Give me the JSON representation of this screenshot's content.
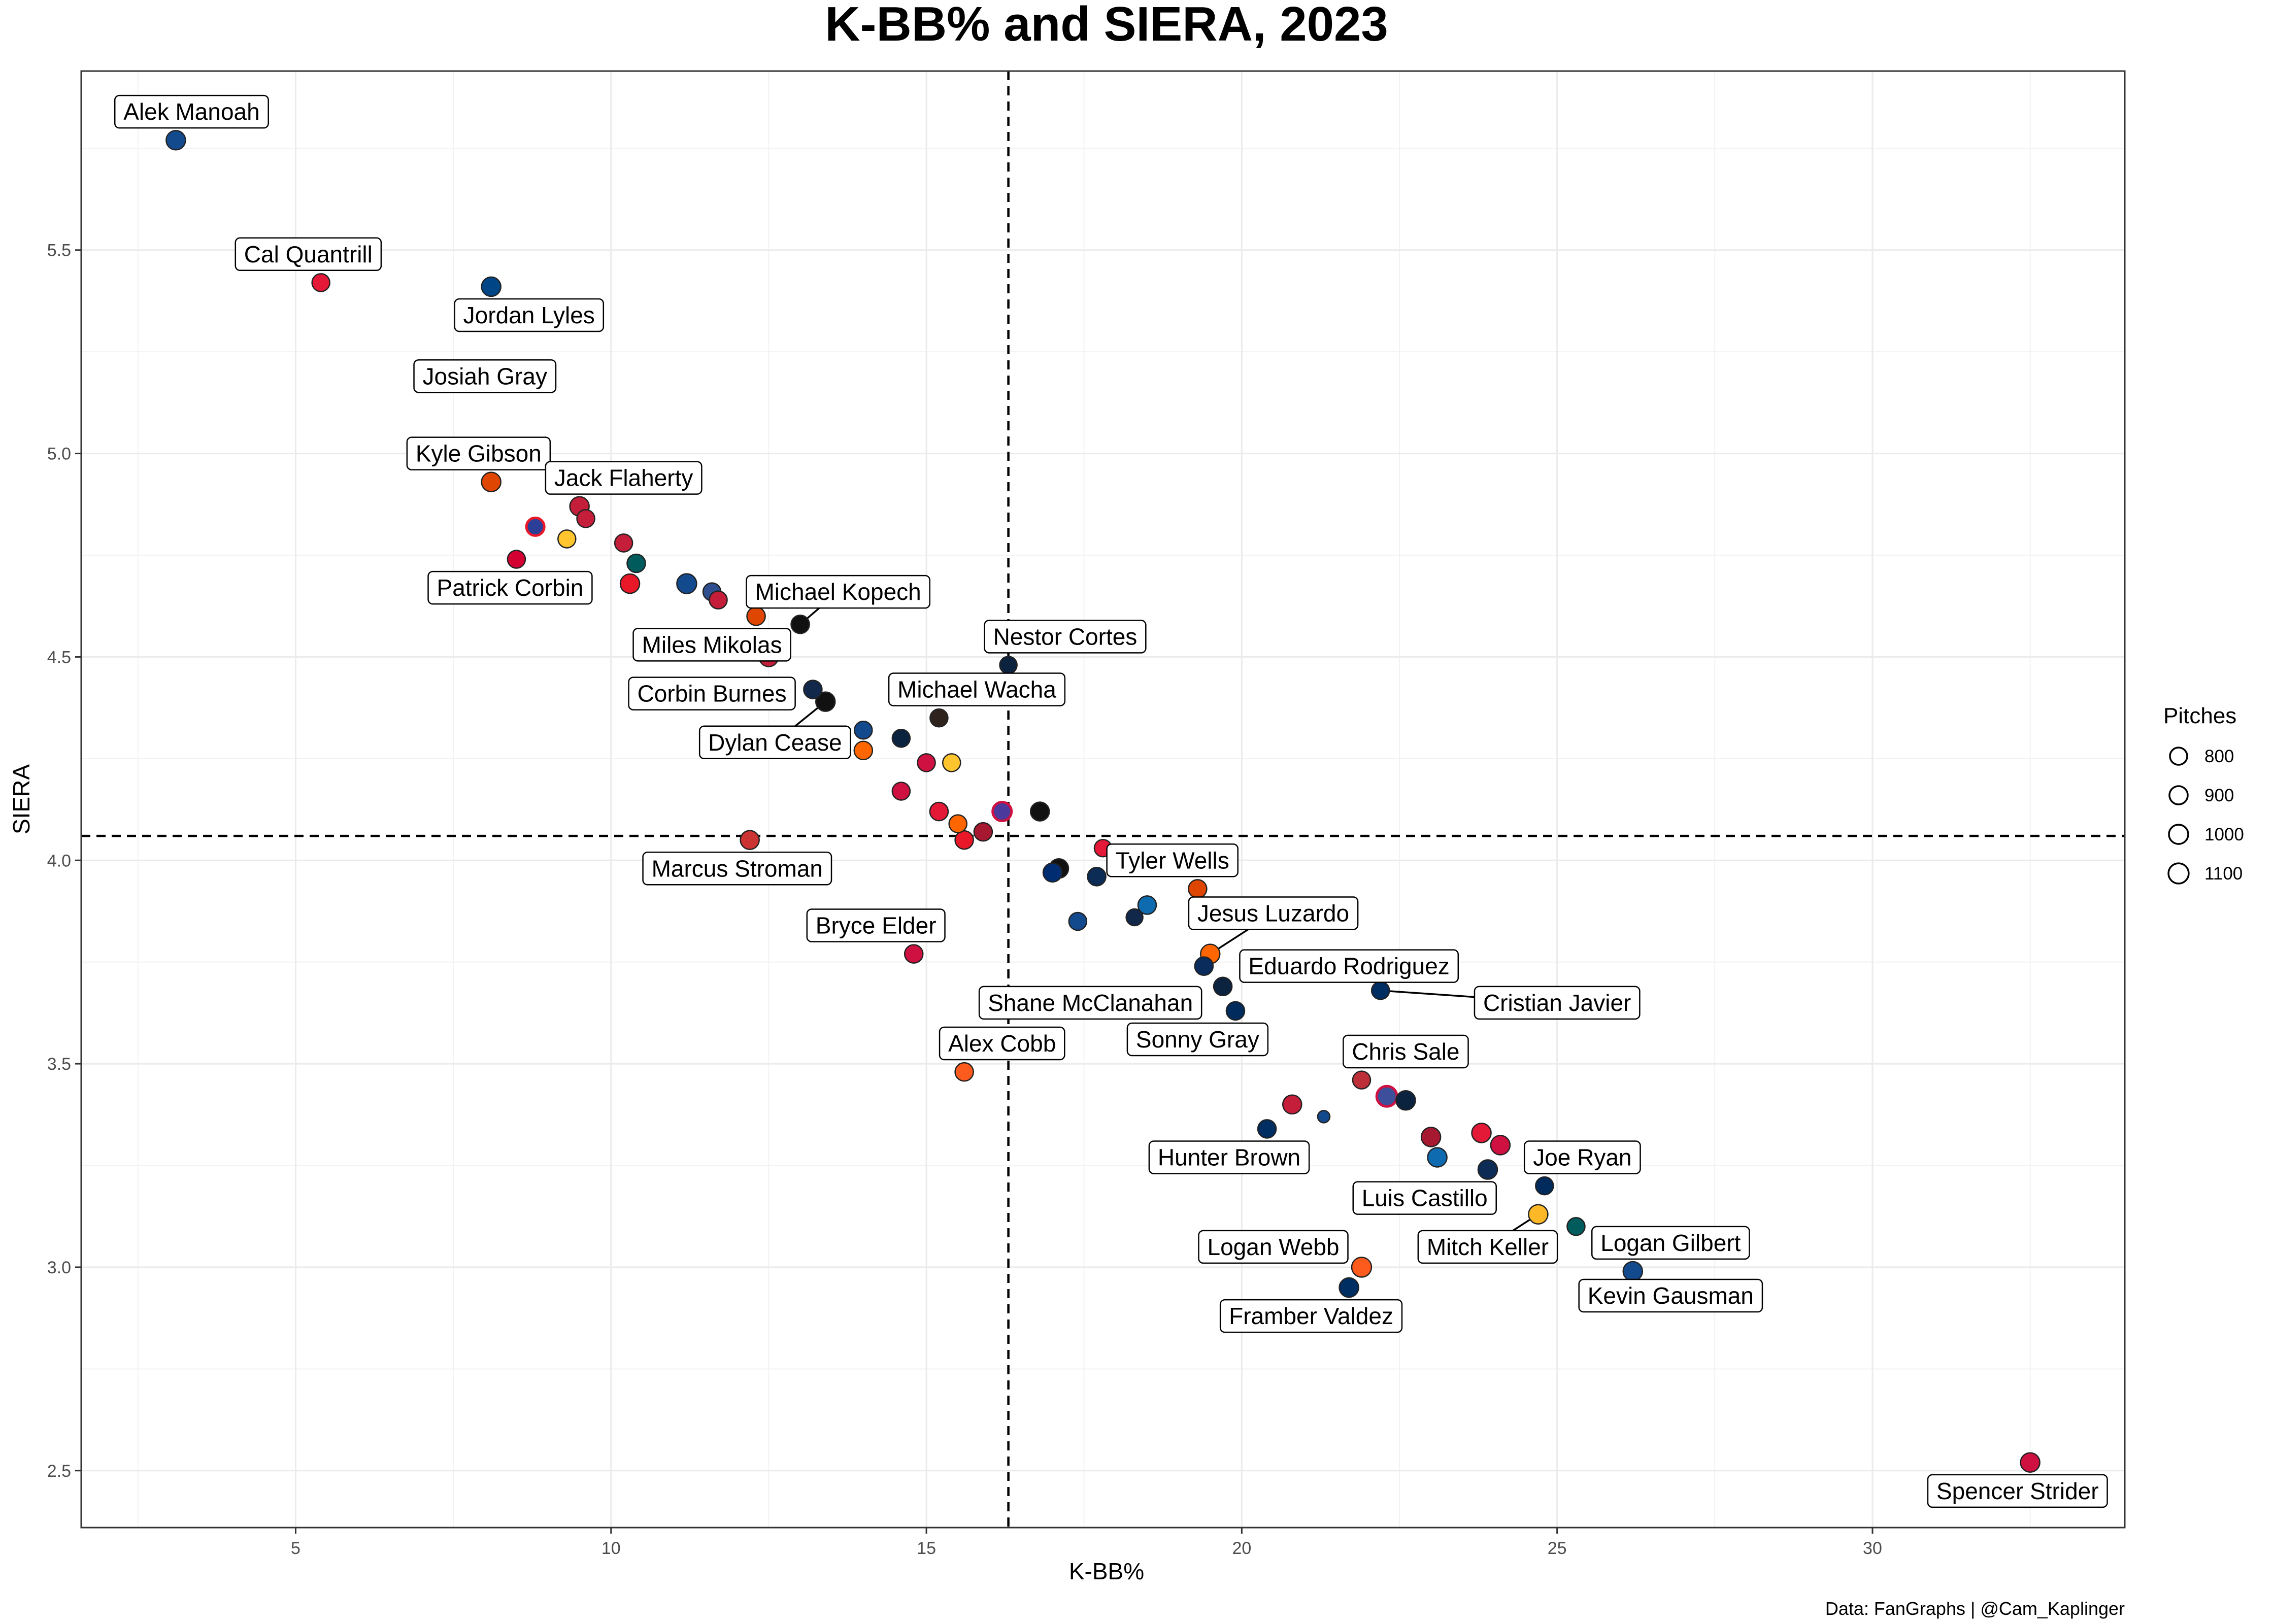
{
  "chart_data": {
    "type": "scatter",
    "title": "K-BB% and SIERA, 2023",
    "xlabel": "K-BB%",
    "ylabel": "SIERA",
    "caption": "Data: FanGraphs | @Cam_Kaplinger",
    "xlim": [
      1.6,
      34.0
    ],
    "ylim": [
      2.36,
      5.94
    ],
    "x_ticks": [
      5,
      10,
      15,
      20,
      25,
      30
    ],
    "x_tick_labels": [
      "5",
      "10",
      "15",
      "20",
      "25",
      "30"
    ],
    "y_ticks": [
      2.5,
      3.0,
      3.5,
      4.0,
      4.5,
      5.0,
      5.5
    ],
    "y_tick_labels": [
      "2.5",
      "3.0",
      "3.5",
      "4.0",
      "4.5",
      "5.0",
      "5.5"
    ],
    "grid": true,
    "reference_lines": {
      "vertical_x": 16.3,
      "horizontal_y": 4.06,
      "style": "dashed"
    },
    "legend": {
      "title": "Pitches",
      "position": "right",
      "entries": [
        {
          "label": "800",
          "size": 800
        },
        {
          "label": "900",
          "size": 900
        },
        {
          "label": "1000",
          "size": 1000
        },
        {
          "label": "1100",
          "size": 1100
        }
      ]
    },
    "points": [
      {
        "name": "Alek Manoah",
        "x": 3.1,
        "y": 5.77,
        "size": 1000,
        "color": "#134A8E"
      },
      {
        "name": "Cal Quantrill",
        "x": 5.4,
        "y": 5.42,
        "size": 850,
        "color": "#E31937"
      },
      {
        "name": "Jordan Lyles",
        "x": 8.1,
        "y": 5.41,
        "size": 1000,
        "color": "#004687"
      },
      {
        "name": "Josiah Gray",
        "x": null,
        "y": null,
        "size": 0,
        "color": "#AB0003"
      },
      {
        "name": "Kyle Gibson",
        "x": 8.1,
        "y": 4.93,
        "size": 1000,
        "color": "#DF4601"
      },
      {
        "name": "Jack Flaherty",
        "x": 9.5,
        "y": 4.87,
        "size": 1000,
        "color": "#C41E3A"
      },
      {
        "name": "Patrick Corbin",
        "x": 8.5,
        "y": 4.74,
        "size": 850,
        "color": "#D50032"
      },
      {
        "name": "Michael Kopech",
        "x": 13.0,
        "y": 4.58,
        "size": 900,
        "color": "#111111"
      },
      {
        "name": "Miles Mikolas",
        "x": 12.5,
        "y": 4.5,
        "size": 1000,
        "color": "#C41E3A"
      },
      {
        "name": "Nestor Cortes",
        "x": 16.3,
        "y": 4.48,
        "size": 800,
        "color": "#0C2340"
      },
      {
        "name": "Corbin Burnes",
        "x": 13.2,
        "y": 4.42,
        "size": 900,
        "color": "#12284B"
      },
      {
        "name": "Michael Wacha",
        "x": 15.2,
        "y": 4.35,
        "size": 850,
        "color": "#2F241D"
      },
      {
        "name": "Dylan Cease",
        "x": 13.4,
        "y": 4.39,
        "size": 1000,
        "color": "#111111"
      },
      {
        "name": "Marcus Stroman",
        "x": 12.2,
        "y": 4.05,
        "size": 950,
        "color": "#CC3433"
      },
      {
        "name": "Tyler Wells",
        "x": 19.3,
        "y": 3.93,
        "size": 900,
        "color": "#DF4601"
      },
      {
        "name": "Bryce Elder",
        "x": 14.8,
        "y": 3.77,
        "size": 900,
        "color": "#CE1141"
      },
      {
        "name": "Jesus Luzardo",
        "x": 19.5,
        "y": 3.77,
        "size": 1000,
        "color": "#FF6600"
      },
      {
        "name": "Shane McClanahan",
        "x": 19.4,
        "y": 3.74,
        "size": 900,
        "color": "#092C5C"
      },
      {
        "name": "Eduardo Rodriguez",
        "x": 19.7,
        "y": 3.69,
        "size": 900,
        "color": "#0C2340"
      },
      {
        "name": "Cristian Javier",
        "x": 22.2,
        "y": 3.68,
        "size": 850,
        "color": "#002D62"
      },
      {
        "name": "Sonny Gray",
        "x": 19.9,
        "y": 3.63,
        "size": 900,
        "color": "#002B5C"
      },
      {
        "name": "Alex Cobb",
        "x": 15.6,
        "y": 3.48,
        "size": 900,
        "color": "#FD5A1E"
      },
      {
        "name": "Chris Sale",
        "x": 21.9,
        "y": 3.46,
        "size": 850,
        "color": "#BD3039"
      },
      {
        "name": "Hunter Brown",
        "x": 20.4,
        "y": 3.34,
        "size": 900,
        "color": "#002D62"
      },
      {
        "name": "Joe Ryan",
        "x": 24.8,
        "y": 3.2,
        "size": 850,
        "color": "#002B5C"
      },
      {
        "name": "Luis Castillo",
        "x": 23.9,
        "y": 3.24,
        "size": 1000,
        "color": "#0C2C56"
      },
      {
        "name": "Mitch Keller",
        "x": 24.7,
        "y": 3.13,
        "size": 1000,
        "color": "#FDB827"
      },
      {
        "name": "Logan Gilbert",
        "x": 25.3,
        "y": 3.1,
        "size": 850,
        "color": "#005C5C"
      },
      {
        "name": "Logan Webb",
        "x": 21.9,
        "y": 3.0,
        "size": 1050,
        "color": "#FD5A1E"
      },
      {
        "name": "Framber Valdez",
        "x": 21.7,
        "y": 2.95,
        "size": 1000,
        "color": "#002D62"
      },
      {
        "name": "Kevin Gausman",
        "x": 26.2,
        "y": 2.99,
        "size": 1000,
        "color": "#134A8E"
      },
      {
        "name": "Spencer Strider",
        "x": 32.5,
        "y": 2.52,
        "size": 1000,
        "color": "#CE1141"
      },
      {
        "name": "",
        "x": 8.8,
        "y": 4.82,
        "size": 850,
        "color": "#2C3F98",
        "stroke": "#E81828"
      },
      {
        "name": "",
        "x": 9.3,
        "y": 4.79,
        "size": 850,
        "color": "#FFC52F"
      },
      {
        "name": "",
        "x": 9.6,
        "y": 4.84,
        "size": 850,
        "color": "#C41E3A"
      },
      {
        "name": "",
        "x": 10.2,
        "y": 4.78,
        "size": 850,
        "color": "#C41E3A"
      },
      {
        "name": "",
        "x": 10.4,
        "y": 4.73,
        "size": 900,
        "color": "#005C5C"
      },
      {
        "name": "",
        "x": 10.3,
        "y": 4.68,
        "size": 1000,
        "color": "#E81828"
      },
      {
        "name": "",
        "x": 11.2,
        "y": 4.68,
        "size": 1050,
        "color": "#134A8E"
      },
      {
        "name": "",
        "x": 11.6,
        "y": 4.66,
        "size": 850,
        "color": "#2F4F8F"
      },
      {
        "name": "",
        "x": 11.7,
        "y": 4.64,
        "size": 850,
        "color": "#C41E3A"
      },
      {
        "name": "",
        "x": 12.3,
        "y": 4.6,
        "size": 900,
        "color": "#DF4601"
      },
      {
        "name": "",
        "x": 14.0,
        "y": 4.32,
        "size": 850,
        "color": "#134A8E"
      },
      {
        "name": "",
        "x": 14.6,
        "y": 4.3,
        "size": 850,
        "color": "#0C2340"
      },
      {
        "name": "",
        "x": 14.0,
        "y": 4.27,
        "size": 900,
        "color": "#FF6600"
      },
      {
        "name": "",
        "x": 15.4,
        "y": 4.24,
        "size": 850,
        "color": "#FFC52F"
      },
      {
        "name": "",
        "x": 15.0,
        "y": 4.24,
        "size": 850,
        "color": "#CE1141"
      },
      {
        "name": "",
        "x": 14.6,
        "y": 4.17,
        "size": 850,
        "color": "#CE1141"
      },
      {
        "name": "",
        "x": 15.2,
        "y": 4.12,
        "size": 900,
        "color": "#E31937"
      },
      {
        "name": "",
        "x": 15.5,
        "y": 4.09,
        "size": 850,
        "color": "#FF6600"
      },
      {
        "name": "",
        "x": 15.6,
        "y": 4.05,
        "size": 900,
        "color": "#E81828"
      },
      {
        "name": "",
        "x": 15.9,
        "y": 4.07,
        "size": 900,
        "color": "#A71930"
      },
      {
        "name": "",
        "x": 16.2,
        "y": 4.12,
        "size": 950,
        "color": "#4B3A9C",
        "stroke": "#CE1141"
      },
      {
        "name": "",
        "x": 16.8,
        "y": 4.12,
        "size": 950,
        "color": "#111111"
      },
      {
        "name": "",
        "x": 17.8,
        "y": 4.03,
        "size": 800,
        "color": "#E31937"
      },
      {
        "name": "",
        "x": 17.0,
        "y": 3.97,
        "size": 950,
        "color": "#002D72"
      },
      {
        "name": "",
        "x": 17.1,
        "y": 3.98,
        "size": 1000,
        "color": "#111111"
      },
      {
        "name": "",
        "x": 17.7,
        "y": 3.96,
        "size": 900,
        "color": "#0C2C56"
      },
      {
        "name": "",
        "x": 18.5,
        "y": 3.89,
        "size": 900,
        "color": "#0E6BB0"
      },
      {
        "name": "",
        "x": 18.3,
        "y": 3.86,
        "size": 750,
        "color": "#12284B"
      },
      {
        "name": "",
        "x": 17.4,
        "y": 3.85,
        "size": 850,
        "color": "#134A8E"
      },
      {
        "name": "",
        "x": 21.3,
        "y": 3.37,
        "size": 400,
        "color": "#134A8E"
      },
      {
        "name": "",
        "x": 20.8,
        "y": 3.4,
        "size": 950,
        "color": "#C41E3A"
      },
      {
        "name": "",
        "x": 22.3,
        "y": 3.42,
        "size": 1100,
        "color": "#3D4F9A",
        "stroke": "#CE1141"
      },
      {
        "name": "",
        "x": 22.6,
        "y": 3.41,
        "size": 1000,
        "color": "#0C2340"
      },
      {
        "name": "",
        "x": 23.0,
        "y": 3.32,
        "size": 1000,
        "color": "#A71930"
      },
      {
        "name": "",
        "x": 23.8,
        "y": 3.33,
        "size": 1000,
        "color": "#E31937"
      },
      {
        "name": "",
        "x": 24.1,
        "y": 3.3,
        "size": 1000,
        "color": "#CE1141"
      },
      {
        "name": "",
        "x": 23.1,
        "y": 3.27,
        "size": 1000,
        "color": "#0E6BB0"
      }
    ],
    "labels": [
      {
        "text": "Alek Manoah",
        "lx": 3.35,
        "ly": 5.84
      },
      {
        "text": "Cal Quantrill",
        "lx": 5.2,
        "ly": 5.49
      },
      {
        "text": "Jordan Lyles",
        "lx": 8.7,
        "ly": 5.34
      },
      {
        "text": "Josiah Gray",
        "lx": 8.0,
        "ly": 5.19
      },
      {
        "text": "Kyle Gibson",
        "lx": 7.9,
        "ly": 5.0
      },
      {
        "text": "Jack Flaherty",
        "lx": 10.2,
        "ly": 4.94
      },
      {
        "text": "Patrick Corbin",
        "lx": 8.4,
        "ly": 4.67
      },
      {
        "text": "Michael Kopech",
        "lx": 13.6,
        "ly": 4.66,
        "tx": 13.0,
        "ty": 4.58
      },
      {
        "text": "Miles Mikolas",
        "lx": 11.6,
        "ly": 4.53
      },
      {
        "text": "Nestor Cortes",
        "lx": 17.2,
        "ly": 4.55
      },
      {
        "text": "Corbin Burnes",
        "lx": 11.6,
        "ly": 4.41
      },
      {
        "text": "Michael Wacha",
        "lx": 15.8,
        "ly": 4.42
      },
      {
        "text": "Dylan Cease",
        "lx": 12.6,
        "ly": 4.29,
        "tx": 13.4,
        "ty": 4.39
      },
      {
        "text": "Marcus Stroman",
        "lx": 12.0,
        "ly": 3.98
      },
      {
        "text": "Tyler Wells",
        "lx": 18.9,
        "ly": 4.0
      },
      {
        "text": "Bryce Elder",
        "lx": 14.2,
        "ly": 3.84
      },
      {
        "text": "Jesus Luzardo",
        "lx": 20.5,
        "ly": 3.87,
        "tx": 19.5,
        "ty": 3.77
      },
      {
        "text": "Shane McClanahan",
        "lx": 17.6,
        "ly": 3.65
      },
      {
        "text": "Eduardo Rodriguez",
        "lx": 21.7,
        "ly": 3.74
      },
      {
        "text": "Cristian Javier",
        "lx": 25.0,
        "ly": 3.65,
        "tx": 22.2,
        "ty": 3.68
      },
      {
        "text": "Sonny Gray",
        "lx": 19.3,
        "ly": 3.56
      },
      {
        "text": "Alex Cobb",
        "lx": 16.2,
        "ly": 3.55
      },
      {
        "text": "Chris Sale",
        "lx": 22.6,
        "ly": 3.53
      },
      {
        "text": "Hunter Brown",
        "lx": 19.8,
        "ly": 3.27
      },
      {
        "text": "Joe Ryan",
        "lx": 25.4,
        "ly": 3.27
      },
      {
        "text": "Luis Castillo",
        "lx": 22.9,
        "ly": 3.17
      },
      {
        "text": "Mitch Keller",
        "lx": 23.9,
        "ly": 3.05,
        "tx": 24.7,
        "ty": 3.13
      },
      {
        "text": "Logan Gilbert",
        "lx": 26.8,
        "ly": 3.06
      },
      {
        "text": "Logan Webb",
        "lx": 20.5,
        "ly": 3.05
      },
      {
        "text": "Framber Valdez",
        "lx": 21.1,
        "ly": 2.88
      },
      {
        "text": "Kevin Gausman",
        "lx": 26.8,
        "ly": 2.93
      },
      {
        "text": "Spencer Strider",
        "lx": 32.3,
        "ly": 2.45
      }
    ]
  }
}
